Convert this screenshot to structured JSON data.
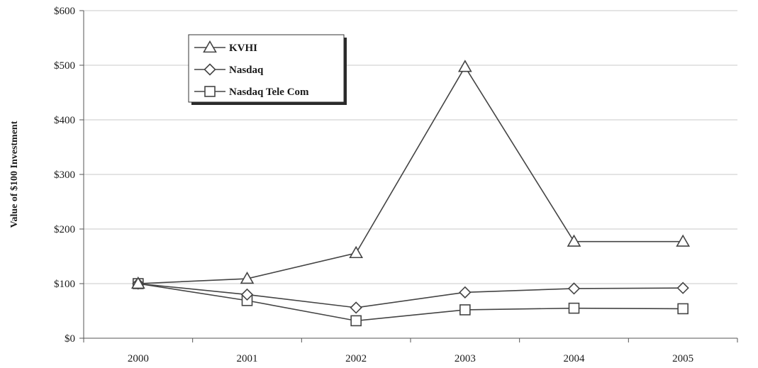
{
  "chart_data": {
    "type": "line",
    "x": [
      "2000",
      "2001",
      "2002",
      "2003",
      "2004",
      "2005"
    ],
    "ylabel": "Value of $100 Investment",
    "ylim": [
      0,
      600
    ],
    "yticks": [
      0,
      100,
      200,
      300,
      400,
      500,
      600
    ],
    "ytick_labels": [
      "$0",
      "$100",
      "$200",
      "$300",
      "$400",
      "$500",
      "$600"
    ],
    "grid": true,
    "legend_position": "top-left",
    "series": [
      {
        "name": "KVHI",
        "marker": "triangle",
        "values": [
          100,
          109,
          156,
          497,
          177,
          177
        ]
      },
      {
        "name": "Nasdaq",
        "marker": "diamond",
        "values": [
          100,
          80,
          56,
          84,
          91,
          92
        ]
      },
      {
        "name": "Nasdaq Tele Com",
        "marker": "square",
        "values": [
          100,
          69,
          32,
          52,
          55,
          54
        ]
      }
    ]
  }
}
